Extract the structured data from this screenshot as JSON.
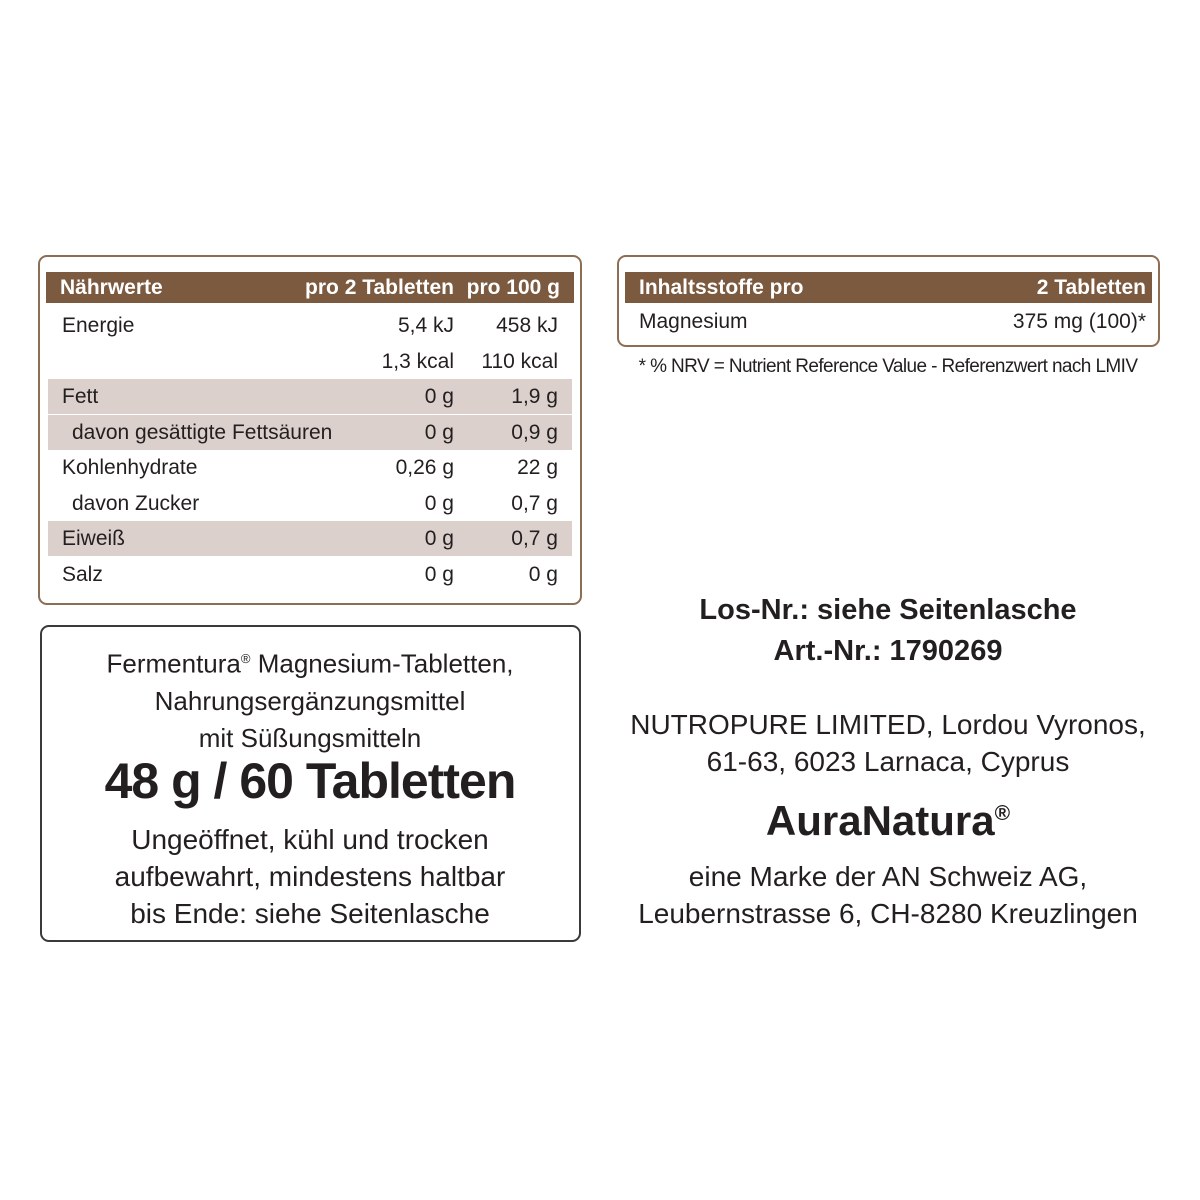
{
  "nutrition": {
    "header": {
      "label": "Nährwerte",
      "col1": "pro 2 Tabletten",
      "col2": "pro 100 g"
    },
    "rows": [
      {
        "label": "Energie",
        "col1": "5,4 kJ",
        "col2": "458 kJ",
        "shaded": false,
        "sub": false
      },
      {
        "label": "",
        "col1": "1,3 kcal",
        "col2": "110 kcal",
        "shaded": false,
        "sub": false
      },
      {
        "label": "Fett",
        "col1": "0 g",
        "col2": "1,9 g",
        "shaded": true,
        "sub": false
      },
      {
        "label": "davon gesättigte Fettsäuren",
        "col1": "0 g",
        "col2": "0,9 g",
        "shaded": true,
        "sub": true
      },
      {
        "label": "Kohlenhydrate",
        "col1": "0,26 g",
        "col2": "22 g",
        "shaded": false,
        "sub": false
      },
      {
        "label": "davon Zucker",
        "col1": "0 g",
        "col2": "0,7 g",
        "shaded": false,
        "sub": true
      },
      {
        "label": "Eiweiß",
        "col1": "0 g",
        "col2": "0,7 g",
        "shaded": true,
        "sub": false
      },
      {
        "label": "Salz",
        "col1": "0 g",
        "col2": "0 g",
        "shaded": false,
        "sub": false
      }
    ],
    "colors": {
      "header": "#7b5a3f",
      "shade": "#dbd0cb",
      "border": "#8c6e55"
    }
  },
  "ingredients": {
    "header": {
      "label": "Inhaltsstoffe pro",
      "col": "2 Tabletten"
    },
    "rows": [
      {
        "label": "Magnesium",
        "value": "375 mg (100)*"
      }
    ],
    "footnote": "* % NRV = Nutrient Reference Value - Referenzwert nach LMIV"
  },
  "product": {
    "name": "Fermentura",
    "reg": "®",
    "name_rest": " Magnesium-Tabletten,",
    "line2": "Nahrungsergänzungsmittel",
    "line3": "mit Süßungsmitteln",
    "quantity": "48 g / 60 Tabletten",
    "storage": [
      "Ungeöffnet, kühl und trocken",
      "aufbewahrt, mindestens haltbar",
      "bis Ende: siehe Seitenlasche"
    ]
  },
  "info": {
    "lot": "Los-Nr.: siehe Seitenlasche",
    "article": "Art.-Nr.: 1790269",
    "manufacturer": [
      "NUTROPURE LIMITED, Lordou Vyronos,",
      "61-63, 6023 Larnaca, Cyprus"
    ],
    "brand": "AuraNatura",
    "brand_reg": "®",
    "brand_owner": [
      "eine Marke der AN Schweiz AG,",
      "Leubernstrasse 6, CH-8280 Kreuzlingen"
    ]
  }
}
